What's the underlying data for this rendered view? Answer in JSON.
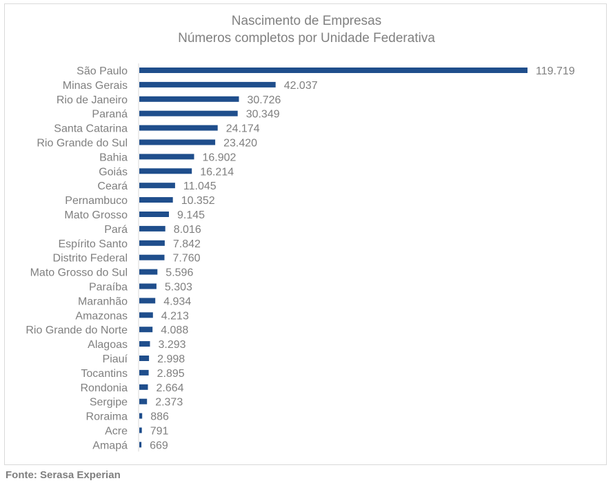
{
  "chart_data": {
    "type": "bar",
    "orientation": "horizontal",
    "title": "Nascimento de Empresas",
    "subtitle": "Números completos por Unidade Federativa",
    "categories": [
      "São Paulo",
      "Minas Gerais",
      "Rio de Janeiro",
      "Paraná",
      "Santa Catarina",
      "Rio Grande do Sul",
      "Bahia",
      "Goiás",
      "Ceará",
      "Pernambuco",
      "Mato Grosso",
      "Pará",
      "Espírito Santo",
      "Distrito Federal",
      "Mato Grosso do Sul",
      "Paraíba",
      "Maranhão",
      "Amazonas",
      "Rio Grande do Norte",
      "Alagoas",
      "Piauí",
      "Tocantins",
      "Rondonia",
      "Sergipe",
      "Roraima",
      "Acre",
      "Amapá"
    ],
    "values": [
      119719,
      42037,
      30726,
      30349,
      24174,
      23420,
      16902,
      16214,
      11045,
      10352,
      9145,
      8016,
      7842,
      7760,
      5596,
      5303,
      4934,
      4213,
      4088,
      3293,
      2998,
      2895,
      2664,
      2373,
      886,
      791,
      669
    ],
    "value_labels": [
      "119.719",
      "42.037",
      "30.726",
      "30.349",
      "24.174",
      "23.420",
      "16.902",
      "16.214",
      "11.045",
      "10.352",
      "9.145",
      "8.016",
      "7.842",
      "7.760",
      "5.596",
      "5.303",
      "4.934",
      "4.213",
      "4.088",
      "3.293",
      "2.998",
      "2.895",
      "2.664",
      "2.373",
      "886",
      "791",
      "669"
    ],
    "bar_color": "#1f4e8c",
    "grid": false,
    "legend": "none"
  },
  "source": "Fonte: Serasa Experian"
}
